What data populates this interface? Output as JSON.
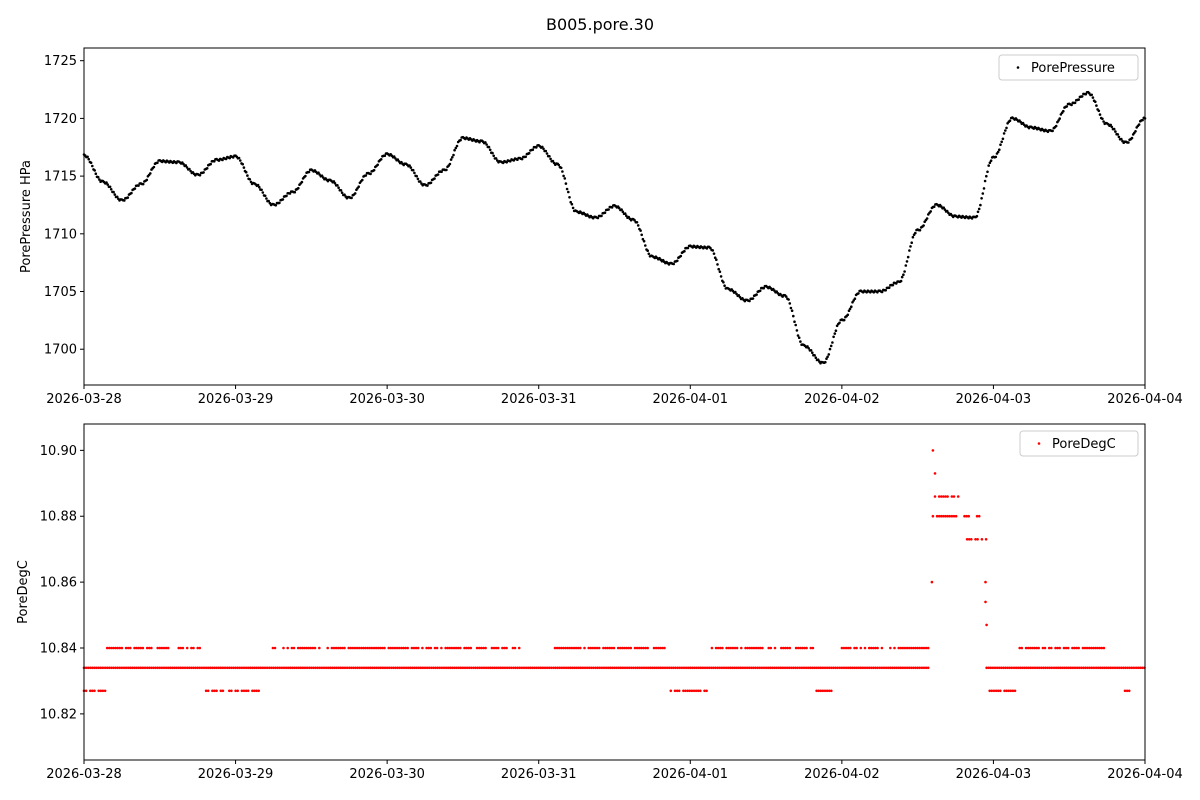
{
  "title": "B005.pore.30",
  "chart_data": [
    {
      "type": "scatter",
      "ylabel": "PorePressure HPa",
      "xlim": [
        "2026-03-28T00:00",
        "2026-04-04T00:00"
      ],
      "ylim": [
        1696.9,
        1726.1
      ],
      "grid": false,
      "legend_position": "top-right",
      "x_ticks": [
        "2026-03-28",
        "2026-03-29",
        "2026-03-30",
        "2026-03-31",
        "2026-04-01",
        "2026-04-02",
        "2026-04-03",
        "2026-04-04"
      ],
      "y_ticks": [
        1700,
        1705,
        1710,
        1715,
        1720,
        1725
      ],
      "y_tick_labels": [
        "1700",
        "1705",
        "1710",
        "1715",
        "1720",
        "1725"
      ],
      "series": [
        {
          "name": "PorePressure",
          "color": "#000000",
          "x": [
            "2026-03-28T00:00",
            "2026-03-28T03:00",
            "2026-03-28T06:00",
            "2026-03-28T09:00",
            "2026-03-28T12:00",
            "2026-03-28T15:00",
            "2026-03-28T18:00",
            "2026-03-28T21:00",
            "2026-03-29T00:00",
            "2026-03-29T03:00",
            "2026-03-29T06:00",
            "2026-03-29T09:00",
            "2026-03-29T12:00",
            "2026-03-29T15:00",
            "2026-03-29T18:00",
            "2026-03-29T21:00",
            "2026-03-30T00:00",
            "2026-03-30T03:00",
            "2026-03-30T06:00",
            "2026-03-30T09:00",
            "2026-03-30T12:00",
            "2026-03-30T15:00",
            "2026-03-30T18:00",
            "2026-03-30T21:00",
            "2026-03-31T00:00",
            "2026-03-31T03:00",
            "2026-03-31T06:00",
            "2026-03-31T09:00",
            "2026-03-31T12:00",
            "2026-03-31T15:00",
            "2026-03-31T18:00",
            "2026-03-31T21:00",
            "2026-04-01T00:00",
            "2026-04-01T03:00",
            "2026-04-01T06:00",
            "2026-04-01T09:00",
            "2026-04-01T12:00",
            "2026-04-01T15:00",
            "2026-04-01T18:00",
            "2026-04-01T21:00",
            "2026-04-02T00:00",
            "2026-04-02T03:00",
            "2026-04-02T06:00",
            "2026-04-02T09:00",
            "2026-04-02T12:00",
            "2026-04-02T15:00",
            "2026-04-02T18:00",
            "2026-04-02T21:00",
            "2026-04-03T00:00",
            "2026-04-03T03:00",
            "2026-04-03T06:00",
            "2026-04-03T09:00",
            "2026-04-03T12:00",
            "2026-04-03T15:00",
            "2026-04-03T18:00",
            "2026-04-03T21:00",
            "2026-04-04T00:00"
          ],
          "y": [
            1716.8,
            1714.5,
            1712.9,
            1714.3,
            1716.3,
            1716.2,
            1715.1,
            1716.4,
            1716.7,
            1714.3,
            1712.5,
            1713.6,
            1715.5,
            1714.6,
            1713.1,
            1715.2,
            1716.9,
            1716.0,
            1714.2,
            1715.5,
            1718.3,
            1718.0,
            1716.2,
            1716.5,
            1717.6,
            1716.0,
            1711.9,
            1711.4,
            1712.4,
            1711.2,
            1708.0,
            1707.4,
            1708.9,
            1708.8,
            1705.2,
            1704.2,
            1705.4,
            1704.6,
            1700.3,
            1698.8,
            1702.5,
            1705.0,
            1705.0,
            1705.8,
            1710.3,
            1712.5,
            1711.5,
            1711.4,
            1716.6,
            1720.0,
            1719.2,
            1718.9,
            1721.2,
            1722.2,
            1719.5,
            1717.9,
            1720.0
          ]
        }
      ]
    },
    {
      "type": "scatter",
      "ylabel": "PoreDegC",
      "xlim": [
        "2026-03-28T00:00",
        "2026-04-04T00:00"
      ],
      "ylim": [
        10.806,
        10.908
      ],
      "grid": false,
      "legend_position": "top-right",
      "x_ticks": [
        "2026-03-28",
        "2026-03-29",
        "2026-03-30",
        "2026-03-31",
        "2026-04-01",
        "2026-04-02",
        "2026-04-03",
        "2026-04-04"
      ],
      "y_ticks": [
        10.82,
        10.84,
        10.86,
        10.88,
        10.9
      ],
      "y_tick_labels": [
        "10.82",
        "10.84",
        "10.86",
        "10.88",
        "10.90"
      ],
      "series": [
        {
          "name": "PoreDegC",
          "color": "#ff0000",
          "runs": [
            {
              "value": 10.834,
              "from": "2026-03-28T00:00",
              "to": "2026-04-02T13:55"
            },
            {
              "value": 10.834,
              "from": "2026-04-02T22:55",
              "to": "2026-04-04T00:00"
            },
            {
              "value": 10.827,
              "from": "2026-03-28T00:00",
              "to": "2026-03-28T03:20"
            },
            {
              "value": 10.827,
              "from": "2026-03-28T19:20",
              "to": "2026-03-29T03:50"
            },
            {
              "value": 10.827,
              "from": "2026-03-31T20:55",
              "to": "2026-04-01T03:05"
            },
            {
              "value": 10.827,
              "from": "2026-04-01T19:40",
              "to": "2026-04-01T22:25"
            },
            {
              "value": 10.827,
              "from": "2026-04-02T23:25",
              "to": "2026-04-03T03:25"
            },
            {
              "value": 10.827,
              "from": "2026-04-03T20:50",
              "to": "2026-04-03T22:05"
            },
            {
              "value": 10.84,
              "from": "2026-03-28T03:40",
              "to": "2026-03-28T18:20"
            },
            {
              "value": 10.84,
              "from": "2026-03-29T05:55",
              "to": "2026-03-30T21:00"
            },
            {
              "value": 10.84,
              "from": "2026-03-31T02:35",
              "to": "2026-03-31T20:00"
            },
            {
              "value": 10.84,
              "from": "2026-04-01T03:25",
              "to": "2026-04-01T19:40"
            },
            {
              "value": 10.84,
              "from": "2026-04-01T23:40",
              "to": "2026-04-02T13:55"
            },
            {
              "value": 10.84,
              "from": "2026-04-03T04:10",
              "to": "2026-04-03T17:35"
            },
            {
              "value": 10.886,
              "from": "2026-04-02T14:45",
              "to": "2026-04-02T18:25"
            },
            {
              "value": 10.88,
              "from": "2026-04-02T14:25",
              "to": "2026-04-02T22:35"
            },
            {
              "value": 10.873,
              "from": "2026-04-02T19:50",
              "to": "2026-04-02T22:55"
            }
          ],
          "points": [
            {
              "x": "2026-04-02T14:25",
              "y": 10.9
            },
            {
              "x": "2026-04-02T14:45",
              "y": 10.893
            },
            {
              "x": "2026-04-02T14:15",
              "y": 10.86
            },
            {
              "x": "2026-04-02T22:45",
              "y": 10.86
            },
            {
              "x": "2026-04-02T22:45",
              "y": 10.854
            },
            {
              "x": "2026-04-02T22:55",
              "y": 10.847
            }
          ]
        }
      ]
    }
  ]
}
